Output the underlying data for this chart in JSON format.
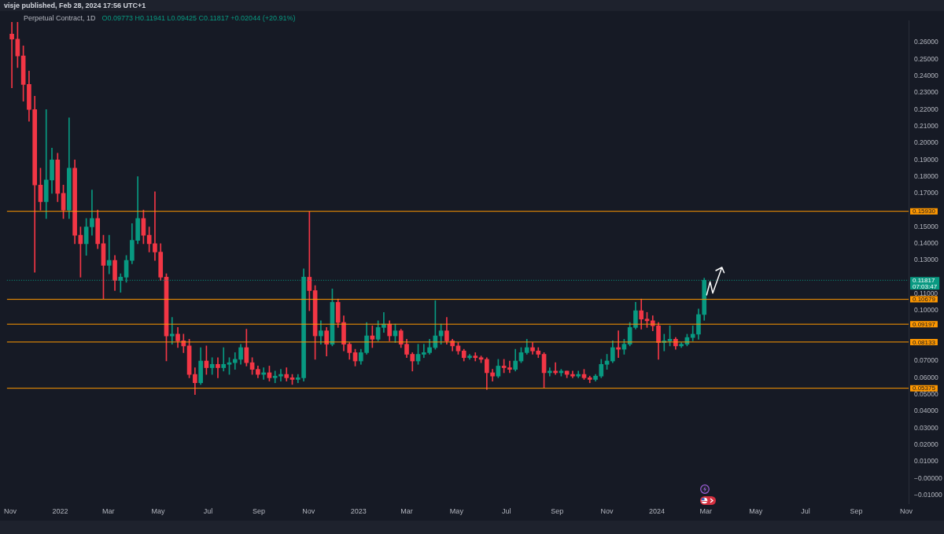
{
  "chart_data": {
    "type": "candlestick",
    "title": "Perpetual Contract, 1D",
    "subtitle": "O0.09773 H0.11941 L0.09425 C0.11817 +0.02044 (+20.91%)",
    "annotations": [
      "visje published, Feb 28, 2024 17:56 UTC+1",
      "07:03:47"
    ],
    "x": [
      "2021-11-03",
      "2021-11-10",
      "2021-11-17",
      "2021-11-24",
      "2021-12-01",
      "2021-12-08",
      "2021-12-15",
      "2021-12-22",
      "2021-12-29",
      "2022-01-05",
      "2022-01-12",
      "2022-01-19",
      "2022-01-26",
      "2022-02-02",
      "2022-02-09",
      "2022-02-16",
      "2022-02-23",
      "2022-03-02",
      "2022-03-09",
      "2022-03-16",
      "2022-03-23",
      "2022-03-30",
      "2022-04-06",
      "2022-04-13",
      "2022-04-20",
      "2022-04-27",
      "2022-05-04",
      "2022-05-11",
      "2022-05-18",
      "2022-05-25",
      "2022-06-01",
      "2022-06-08",
      "2022-06-15",
      "2022-06-22",
      "2022-06-29",
      "2022-07-06",
      "2022-07-13",
      "2022-07-20",
      "2022-07-27",
      "2022-08-03",
      "2022-08-10",
      "2022-08-17",
      "2022-08-24",
      "2022-08-31",
      "2022-09-07",
      "2022-09-14",
      "2022-09-21",
      "2022-09-28",
      "2022-10-05",
      "2022-10-12",
      "2022-10-19",
      "2022-10-26",
      "2022-11-02",
      "2022-11-09",
      "2022-11-16",
      "2022-11-23",
      "2022-11-30",
      "2022-12-07",
      "2022-12-14",
      "2022-12-21",
      "2022-12-28",
      "2023-01-04",
      "2023-01-11",
      "2023-01-18",
      "2023-01-25",
      "2023-02-01",
      "2023-02-08",
      "2023-02-15",
      "2023-02-22",
      "2023-03-01",
      "2023-03-08",
      "2023-03-15",
      "2023-03-22",
      "2023-03-29",
      "2023-04-05",
      "2023-04-12",
      "2023-04-19",
      "2023-04-26",
      "2023-05-03",
      "2023-05-10",
      "2023-05-17",
      "2023-05-24",
      "2023-05-31",
      "2023-06-07",
      "2023-06-14",
      "2023-06-21",
      "2023-06-28",
      "2023-07-05",
      "2023-07-12",
      "2023-07-19",
      "2023-07-26",
      "2023-08-02",
      "2023-08-09",
      "2023-08-16",
      "2023-08-23",
      "2023-08-30",
      "2023-09-06",
      "2023-09-13",
      "2023-09-20",
      "2023-09-27",
      "2023-10-04",
      "2023-10-11",
      "2023-10-18",
      "2023-10-25",
      "2023-11-01",
      "2023-11-08",
      "2023-11-15",
      "2023-11-22",
      "2023-11-29",
      "2023-12-06",
      "2023-12-13",
      "2023-12-20",
      "2023-12-27",
      "2024-01-03",
      "2024-01-10",
      "2024-01-17",
      "2024-01-24",
      "2024-01-31",
      "2024-02-07",
      "2024-02-14",
      "2024-02-21",
      "2024-02-28"
    ],
    "ohlc": [
      [
        0.265,
        0.272,
        0.233,
        0.262
      ],
      [
        0.262,
        0.272,
        0.245,
        0.252
      ],
      [
        0.252,
        0.258,
        0.225,
        0.235
      ],
      [
        0.235,
        0.243,
        0.213,
        0.22
      ],
      [
        0.22,
        0.228,
        0.123,
        0.175
      ],
      [
        0.175,
        0.185,
        0.16,
        0.165
      ],
      [
        0.165,
        0.22,
        0.155,
        0.178
      ],
      [
        0.178,
        0.197,
        0.17,
        0.19
      ],
      [
        0.19,
        0.194,
        0.165,
        0.17
      ],
      [
        0.17,
        0.175,
        0.155,
        0.16
      ],
      [
        0.16,
        0.215,
        0.155,
        0.185
      ],
      [
        0.185,
        0.19,
        0.14,
        0.145
      ],
      [
        0.145,
        0.15,
        0.12,
        0.14
      ],
      [
        0.14,
        0.155,
        0.133,
        0.15
      ],
      [
        0.15,
        0.172,
        0.145,
        0.155
      ],
      [
        0.155,
        0.16,
        0.137,
        0.14
      ],
      [
        0.14,
        0.145,
        0.107,
        0.127
      ],
      [
        0.127,
        0.145,
        0.122,
        0.13
      ],
      [
        0.13,
        0.133,
        0.112,
        0.118
      ],
      [
        0.118,
        0.122,
        0.111,
        0.12
      ],
      [
        0.12,
        0.133,
        0.117,
        0.13
      ],
      [
        0.13,
        0.152,
        0.128,
        0.142
      ],
      [
        0.142,
        0.18,
        0.14,
        0.155
      ],
      [
        0.155,
        0.16,
        0.14,
        0.145
      ],
      [
        0.145,
        0.15,
        0.135,
        0.14
      ],
      [
        0.14,
        0.171,
        0.13,
        0.135
      ],
      [
        0.135,
        0.14,
        0.118,
        0.12
      ],
      [
        0.12,
        0.122,
        0.07,
        0.085
      ],
      [
        0.085,
        0.096,
        0.08,
        0.086
      ],
      [
        0.086,
        0.09,
        0.078,
        0.082
      ],
      [
        0.082,
        0.086,
        0.075,
        0.079
      ],
      [
        0.079,
        0.083,
        0.06,
        0.062
      ],
      [
        0.062,
        0.066,
        0.05,
        0.057
      ],
      [
        0.057,
        0.078,
        0.056,
        0.07
      ],
      [
        0.07,
        0.079,
        0.062,
        0.066
      ],
      [
        0.066,
        0.072,
        0.062,
        0.068
      ],
      [
        0.068,
        0.072,
        0.06,
        0.066
      ],
      [
        0.066,
        0.078,
        0.064,
        0.068
      ],
      [
        0.068,
        0.072,
        0.062,
        0.069
      ],
      [
        0.069,
        0.075,
        0.065,
        0.071
      ],
      [
        0.071,
        0.08,
        0.068,
        0.078
      ],
      [
        0.078,
        0.089,
        0.067,
        0.069
      ],
      [
        0.069,
        0.072,
        0.062,
        0.065
      ],
      [
        0.065,
        0.067,
        0.06,
        0.062
      ],
      [
        0.062,
        0.066,
        0.059,
        0.063
      ],
      [
        0.063,
        0.067,
        0.058,
        0.06
      ],
      [
        0.06,
        0.064,
        0.057,
        0.061
      ],
      [
        0.061,
        0.065,
        0.058,
        0.062
      ],
      [
        0.062,
        0.066,
        0.058,
        0.06
      ],
      [
        0.06,
        0.062,
        0.056,
        0.059
      ],
      [
        0.059,
        0.062,
        0.057,
        0.06
      ],
      [
        0.06,
        0.125,
        0.058,
        0.12
      ],
      [
        0.12,
        0.159,
        0.1,
        0.112
      ],
      [
        0.112,
        0.115,
        0.071,
        0.085
      ],
      [
        0.085,
        0.094,
        0.08,
        0.088
      ],
      [
        0.088,
        0.09,
        0.073,
        0.08
      ],
      [
        0.08,
        0.113,
        0.079,
        0.105
      ],
      [
        0.105,
        0.107,
        0.09,
        0.093
      ],
      [
        0.093,
        0.097,
        0.076,
        0.08
      ],
      [
        0.08,
        0.081,
        0.071,
        0.075
      ],
      [
        0.075,
        0.077,
        0.067,
        0.07
      ],
      [
        0.07,
        0.077,
        0.068,
        0.075
      ],
      [
        0.075,
        0.093,
        0.074,
        0.085
      ],
      [
        0.085,
        0.091,
        0.078,
        0.083
      ],
      [
        0.083,
        0.094,
        0.082,
        0.09
      ],
      [
        0.09,
        0.099,
        0.087,
        0.092
      ],
      [
        0.092,
        0.094,
        0.082,
        0.085
      ],
      [
        0.085,
        0.092,
        0.081,
        0.088
      ],
      [
        0.088,
        0.089,
        0.078,
        0.08
      ],
      [
        0.08,
        0.083,
        0.072,
        0.074
      ],
      [
        0.074,
        0.075,
        0.064,
        0.07
      ],
      [
        0.07,
        0.08,
        0.068,
        0.074
      ],
      [
        0.074,
        0.08,
        0.072,
        0.075
      ],
      [
        0.075,
        0.083,
        0.074,
        0.078
      ],
      [
        0.078,
        0.106,
        0.077,
        0.085
      ],
      [
        0.085,
        0.092,
        0.08,
        0.088
      ],
      [
        0.088,
        0.096,
        0.08,
        0.082
      ],
      [
        0.082,
        0.083,
        0.076,
        0.079
      ],
      [
        0.079,
        0.081,
        0.074,
        0.076
      ],
      [
        0.076,
        0.077,
        0.07,
        0.072
      ],
      [
        0.072,
        0.074,
        0.071,
        0.073
      ],
      [
        0.073,
        0.075,
        0.07,
        0.072
      ],
      [
        0.072,
        0.073,
        0.069,
        0.071
      ],
      [
        0.071,
        0.072,
        0.053,
        0.063
      ],
      [
        0.063,
        0.065,
        0.058,
        0.061
      ],
      [
        0.061,
        0.071,
        0.06,
        0.067
      ],
      [
        0.067,
        0.071,
        0.063,
        0.066
      ],
      [
        0.066,
        0.07,
        0.063,
        0.065
      ],
      [
        0.065,
        0.077,
        0.064,
        0.07
      ],
      [
        0.07,
        0.078,
        0.069,
        0.075
      ],
      [
        0.075,
        0.083,
        0.074,
        0.078
      ],
      [
        0.078,
        0.081,
        0.074,
        0.076
      ],
      [
        0.076,
        0.078,
        0.072,
        0.074
      ],
      [
        0.074,
        0.075,
        0.054,
        0.063
      ],
      [
        0.063,
        0.066,
        0.061,
        0.064
      ],
      [
        0.064,
        0.069,
        0.062,
        0.063
      ],
      [
        0.063,
        0.065,
        0.061,
        0.064
      ],
      [
        0.064,
        0.064,
        0.06,
        0.062
      ],
      [
        0.062,
        0.064,
        0.06,
        0.061
      ],
      [
        0.061,
        0.064,
        0.06,
        0.062
      ],
      [
        0.062,
        0.065,
        0.059,
        0.06
      ],
      [
        0.06,
        0.061,
        0.057,
        0.059
      ],
      [
        0.059,
        0.062,
        0.058,
        0.061
      ],
      [
        0.061,
        0.071,
        0.06,
        0.068
      ],
      [
        0.068,
        0.074,
        0.065,
        0.07
      ],
      [
        0.07,
        0.082,
        0.069,
        0.078
      ],
      [
        0.078,
        0.088,
        0.072,
        0.077
      ],
      [
        0.077,
        0.083,
        0.074,
        0.08
      ],
      [
        0.08,
        0.093,
        0.079,
        0.09
      ],
      [
        0.09,
        0.105,
        0.089,
        0.1
      ],
      [
        0.1,
        0.107,
        0.089,
        0.095
      ],
      [
        0.095,
        0.099,
        0.09,
        0.094
      ],
      [
        0.094,
        0.097,
        0.088,
        0.091
      ],
      [
        0.091,
        0.093,
        0.071,
        0.081
      ],
      [
        0.081,
        0.086,
        0.076,
        0.082
      ],
      [
        0.082,
        0.091,
        0.079,
        0.083
      ],
      [
        0.083,
        0.084,
        0.077,
        0.079
      ],
      [
        0.079,
        0.081,
        0.078,
        0.08
      ],
      [
        0.08,
        0.086,
        0.079,
        0.084
      ],
      [
        0.084,
        0.091,
        0.082,
        0.086
      ],
      [
        0.086,
        0.101,
        0.083,
        0.0977
      ],
      [
        0.09773,
        0.11941,
        0.09425,
        0.11817
      ]
    ],
    "colors": [
      "#f23645",
      "#f23645",
      "#f23645",
      "#f23645",
      "#f23645",
      "#f23645",
      "#089981",
      "#089981",
      "#f23645",
      "#f23645",
      "#089981",
      "#f23645",
      "#f23645",
      "#089981",
      "#089981",
      "#f23645",
      "#f23645",
      "#089981",
      "#f23645",
      "#089981",
      "#089981",
      "#089981",
      "#089981",
      "#f23645",
      "#f23645",
      "#f23645",
      "#f23645",
      "#f23645",
      "#089981",
      "#f23645",
      "#f23645",
      "#f23645",
      "#f23645",
      "#089981",
      "#f23645",
      "#089981",
      "#f23645",
      "#089981",
      "#089981",
      "#089981",
      "#089981",
      "#f23645",
      "#f23645",
      "#f23645",
      "#089981",
      "#f23645",
      "#089981",
      "#089981",
      "#f23645",
      "#f23645",
      "#089981",
      "#089981",
      "#f23645",
      "#f23645",
      "#089981",
      "#f23645",
      "#089981",
      "#f23645",
      "#f23645",
      "#f23645",
      "#f23645",
      "#089981",
      "#089981",
      "#f23645",
      "#089981",
      "#089981",
      "#f23645",
      "#089981",
      "#f23645",
      "#f23645",
      "#f23645",
      "#089981",
      "#089981",
      "#089981",
      "#089981",
      "#089981",
      "#f23645",
      "#f23645",
      "#f23645",
      "#f23645",
      "#089981",
      "#f23645",
      "#f23645",
      "#f23645",
      "#f23645",
      "#089981",
      "#f23645",
      "#f23645",
      "#089981",
      "#089981",
      "#089981",
      "#f23645",
      "#f23645",
      "#f23645",
      "#089981",
      "#f23645",
      "#089981",
      "#f23645",
      "#f23645",
      "#089981",
      "#f23645",
      "#f23645",
      "#089981",
      "#089981",
      "#089981",
      "#089981",
      "#f23645",
      "#089981",
      "#089981",
      "#089981",
      "#f23645",
      "#f23645",
      "#f23645",
      "#f23645",
      "#089981",
      "#089981",
      "#f23645",
      "#089981",
      "#089981",
      "#089981",
      "#089981",
      "#089981"
    ],
    "xlim": [
      "2021-10-28",
      "2024-11-04"
    ],
    "xticks": [
      {
        "value": "2021-11-01",
        "label": "Nov"
      },
      {
        "value": "2022-01-01",
        "label": "2022"
      },
      {
        "value": "2022-03-01",
        "label": "Mar"
      },
      {
        "value": "2022-05-01",
        "label": "May"
      },
      {
        "value": "2022-07-01",
        "label": "Jul"
      },
      {
        "value": "2022-09-01",
        "label": "Sep"
      },
      {
        "value": "2022-11-01",
        "label": "Nov"
      },
      {
        "value": "2023-01-01",
        "label": "2023"
      },
      {
        "value": "2023-03-01",
        "label": "Mar"
      },
      {
        "value": "2023-05-01",
        "label": "May"
      },
      {
        "value": "2023-07-01",
        "label": "Jul"
      },
      {
        "value": "2023-09-01",
        "label": "Sep"
      },
      {
        "value": "2023-11-01",
        "label": "Nov"
      },
      {
        "value": "2024-01-01",
        "label": "2024"
      },
      {
        "value": "2024-03-01",
        "label": "Mar"
      },
      {
        "value": "2024-05-01",
        "label": "May"
      },
      {
        "value": "2024-07-01",
        "label": "Jul"
      },
      {
        "value": "2024-09-01",
        "label": "Sep"
      },
      {
        "value": "2024-11-01",
        "label": "Nov"
      }
    ],
    "ylim": [
      -0.0149,
      0.2731
    ],
    "yticks": [
      {
        "value": -0.01,
        "label": "−0.01000"
      },
      {
        "value": 0,
        "label": "−0.00000"
      },
      {
        "value": 0.01,
        "label": "0.01000"
      },
      {
        "value": 0.02,
        "label": "0.02000"
      },
      {
        "value": 0.03,
        "label": "0.03000"
      },
      {
        "value": 0.04,
        "label": "0.04000"
      },
      {
        "value": 0.05,
        "label": "0.05000"
      },
      {
        "value": 0.06,
        "label": "0.06000"
      },
      {
        "value": 0.07,
        "label": "0.07000"
      },
      {
        "value": 0.1,
        "label": "0.10000"
      },
      {
        "value": 0.11,
        "label": "0.11000"
      },
      {
        "value": 0.13,
        "label": "0.13000"
      },
      {
        "value": 0.14,
        "label": "0.14000"
      },
      {
        "value": 0.15,
        "label": "0.15000"
      },
      {
        "value": 0.17,
        "label": "0.17000"
      },
      {
        "value": 0.18,
        "label": "0.18000"
      },
      {
        "value": 0.19,
        "label": "0.19000"
      },
      {
        "value": 0.2,
        "label": "0.20000"
      },
      {
        "value": 0.21,
        "label": "0.21000"
      },
      {
        "value": 0.22,
        "label": "0.22000"
      },
      {
        "value": 0.23,
        "label": "0.23000"
      },
      {
        "value": 0.24,
        "label": "0.24000"
      },
      {
        "value": 0.25,
        "label": "0.25000"
      },
      {
        "value": 0.26,
        "label": "0.26000"
      }
    ],
    "ref_lines": [
      {
        "axis": "y",
        "value": 0.1593,
        "label": "0.15930",
        "color": "#ff9800"
      },
      {
        "axis": "y",
        "value": 0.10679,
        "label": "0.10679",
        "color": "#ff9800"
      },
      {
        "axis": "y",
        "value": 0.09197,
        "label": "0.09197",
        "color": "#ff9800"
      },
      {
        "axis": "y",
        "value": 0.08133,
        "label": "0.08133",
        "color": "#ff9800"
      },
      {
        "axis": "y",
        "value": 0.05375,
        "label": "0.05375",
        "color": "#ff9800"
      },
      {
        "axis": "y",
        "value": 0.11817,
        "label": "0.11817",
        "color": "#089981",
        "line_style": "dotted"
      }
    ]
  }
}
